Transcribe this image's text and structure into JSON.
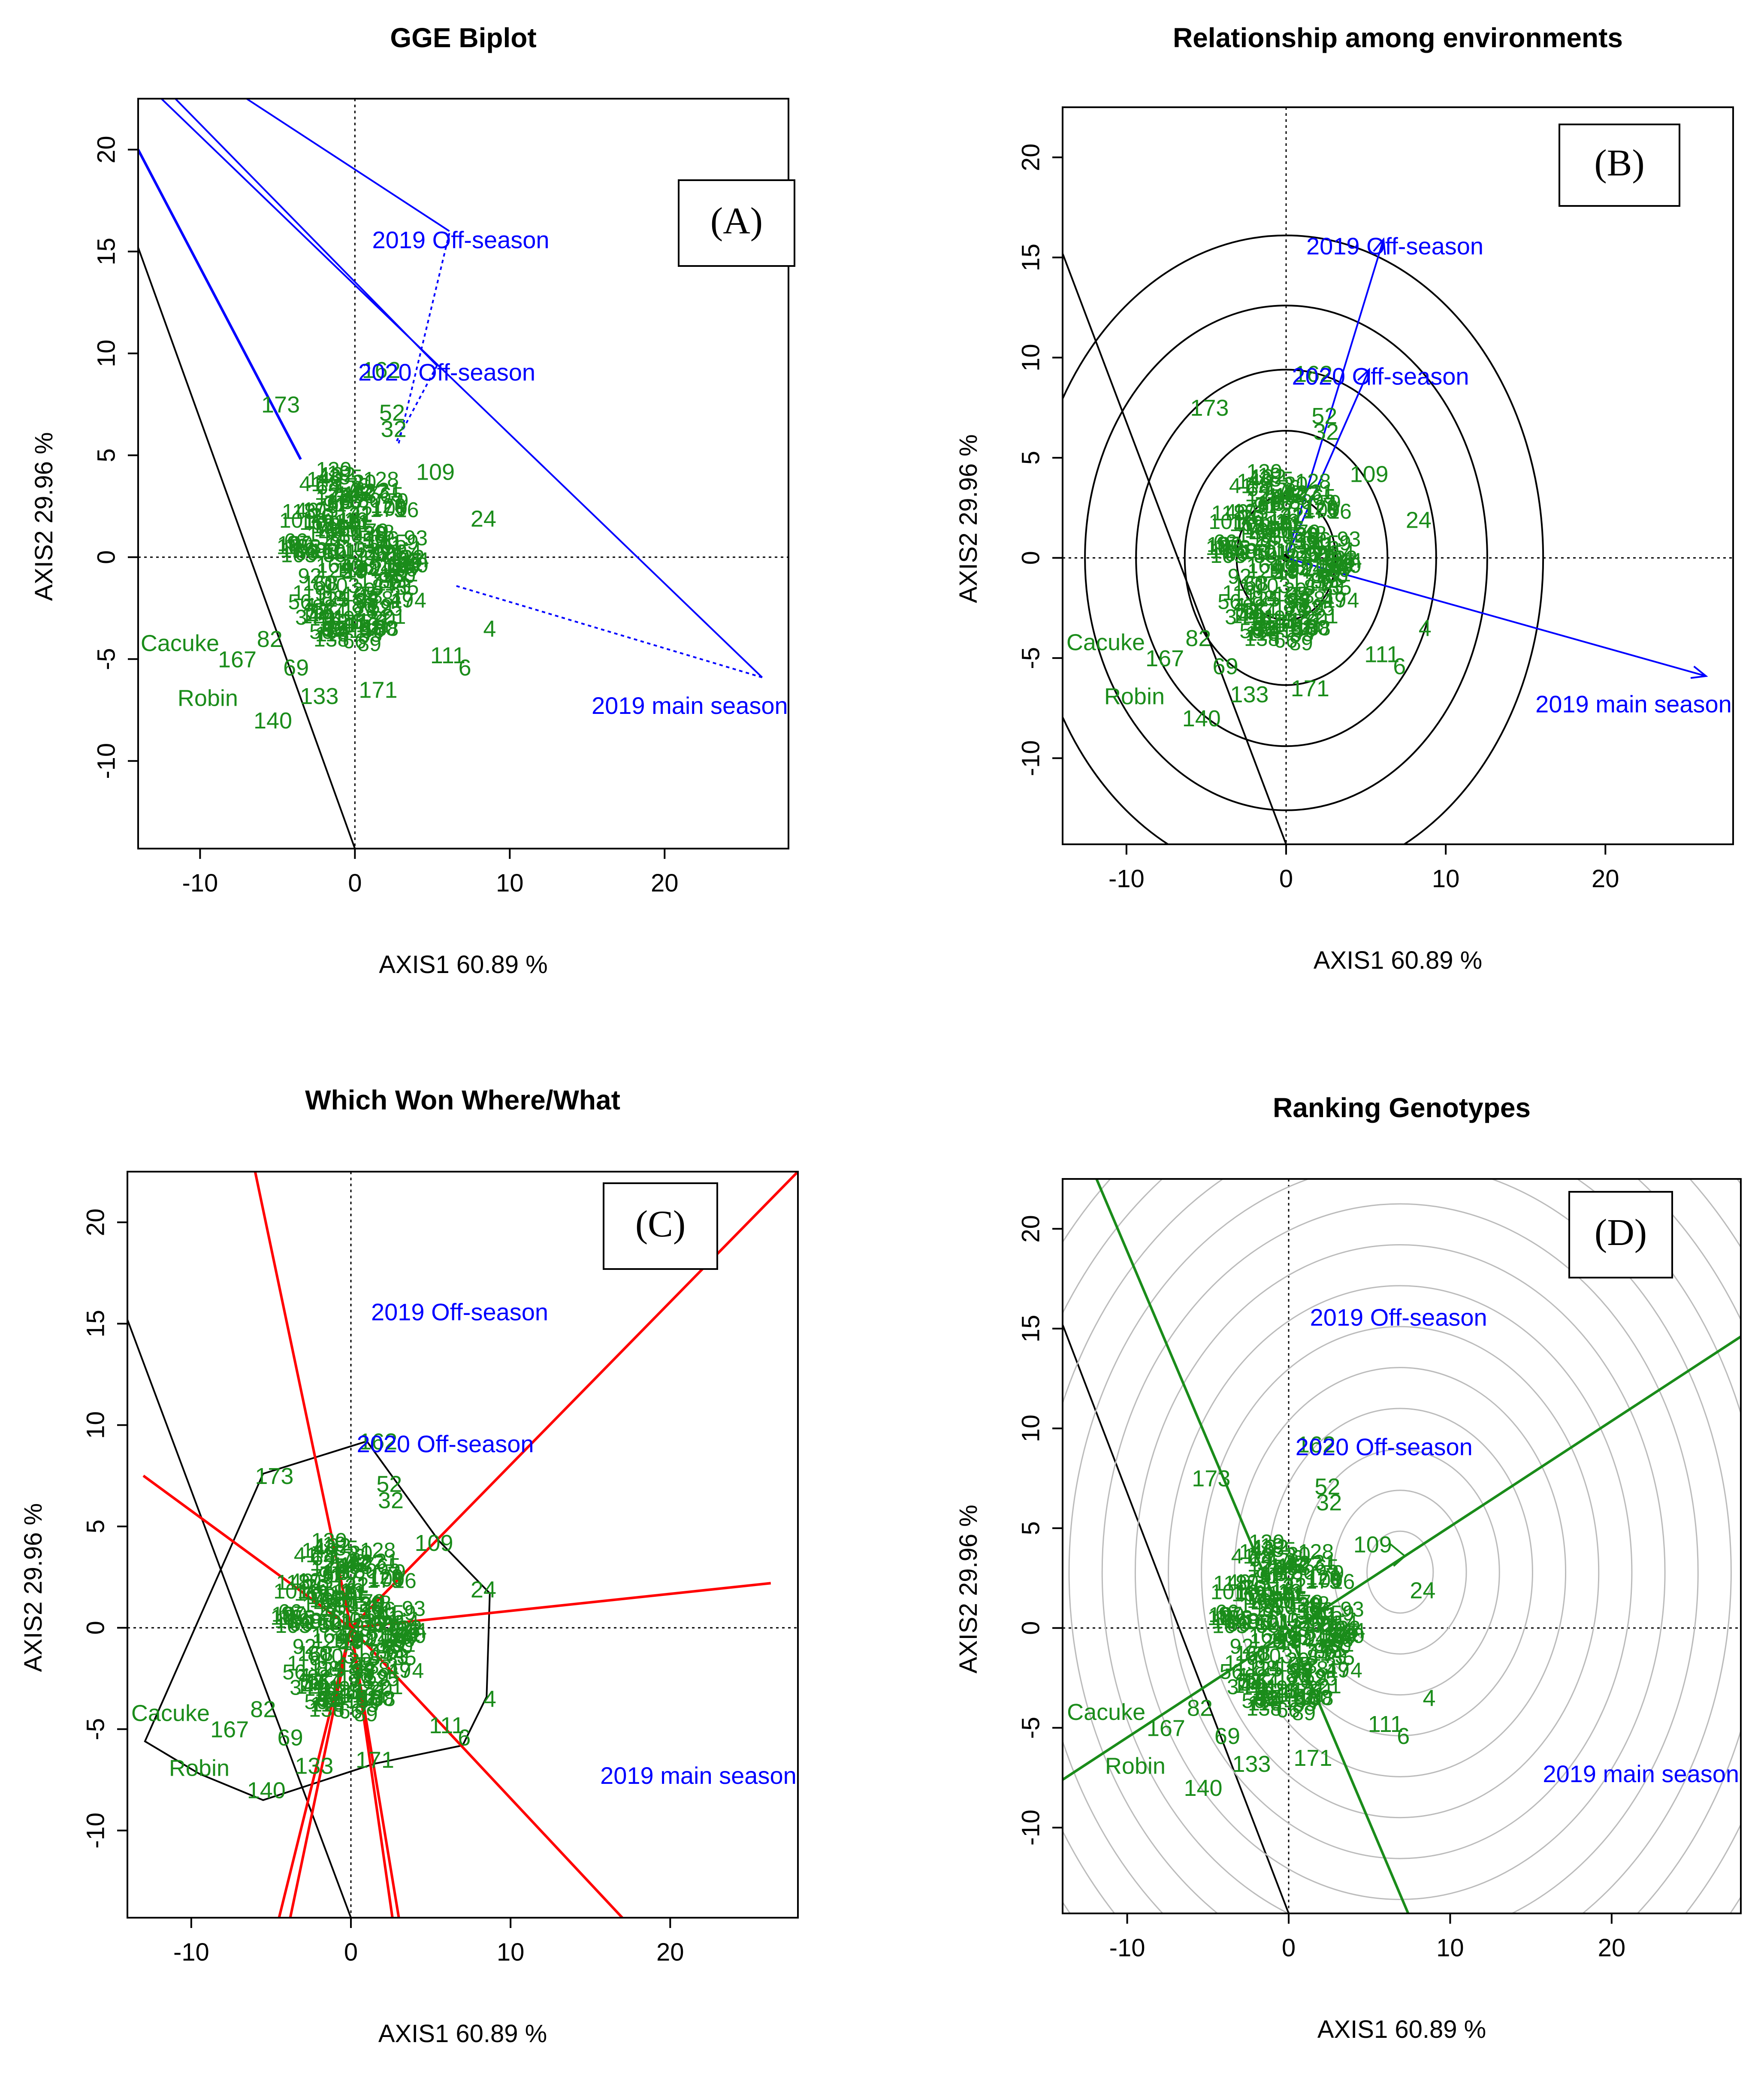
{
  "figure": {
    "colors": {
      "genotype": "#1a8c1a",
      "environment": "#0000ff",
      "sector": "#ff0000",
      "ranking": "#1a8c1a",
      "rings": "#bbbbbb",
      "frame": "#000000"
    },
    "panels": [
      {
        "id": "A",
        "title": "GGE Biplot",
        "panel_label": "(A)",
        "xlabel": "AXIS1 60.89 %",
        "ylabel": "AXIS2 29.96 %",
        "xlim": [
          -14,
          28
        ],
        "ylim": [
          -14.3,
          22.5
        ],
        "xticks": [
          -10,
          0,
          10,
          20
        ],
        "yticks": [
          -10,
          -5,
          0,
          5,
          10,
          15,
          20
        ]
      },
      {
        "id": "B",
        "title": "Relationship among environments",
        "panel_label": "(B)",
        "xlabel": "AXIS1 60.89 %",
        "ylabel": "AXIS2 29.96 %",
        "xlim": [
          -14,
          28
        ],
        "ylim": [
          -14.3,
          22.5
        ],
        "xticks": [
          -10,
          0,
          10,
          20
        ],
        "yticks": [
          -10,
          -5,
          0,
          5,
          10,
          15,
          20
        ]
      },
      {
        "id": "C",
        "title": "Which Won Where/What",
        "panel_label": "(C)",
        "xlabel": "AXIS1 60.89 %",
        "ylabel": "AXIS2 29.96 %",
        "xlim": [
          -14,
          28
        ],
        "ylim": [
          -14.3,
          22.5
        ],
        "xticks": [
          -10,
          0,
          10,
          20
        ],
        "yticks": [
          -10,
          -5,
          0,
          5,
          10,
          15,
          20
        ]
      },
      {
        "id": "D",
        "title": "Ranking Genotypes",
        "panel_label": "(D)",
        "xlabel": "AXIS1 60.89 %",
        "ylabel": "AXIS2 29.96 %",
        "xlim": [
          -14,
          28
        ],
        "ylim": [
          -14.3,
          22.5
        ],
        "xticks": [
          -10,
          0,
          10,
          20
        ],
        "yticks": [
          -10,
          -5,
          0,
          5,
          10,
          15,
          20
        ]
      }
    ]
  },
  "chart_data": {
    "type": "scatter",
    "environments": [
      {
        "name": "2019 Off-season",
        "x": 6.1,
        "y": 15.9
      },
      {
        "name": "2020 Off-season",
        "x": 5.2,
        "y": 9.4
      },
      {
        "name": "2019 main season",
        "x": 26.3,
        "y": -5.9
      }
    ],
    "named_genotypes": [
      {
        "label": "162",
        "x": 1.7,
        "y": 9.1
      },
      {
        "label": "173",
        "x": -4.8,
        "y": 7.4
      },
      {
        "label": "52",
        "x": 2.4,
        "y": 7.0
      },
      {
        "label": "32",
        "x": 2.5,
        "y": 6.2
      },
      {
        "label": "109",
        "x": 5.2,
        "y": 4.1
      },
      {
        "label": "24",
        "x": 8.3,
        "y": 1.8
      },
      {
        "label": "4",
        "x": 8.7,
        "y": -3.6
      },
      {
        "label": "111",
        "x": 6.0,
        "y": -4.9
      },
      {
        "label": "6",
        "x": 7.1,
        "y": -5.5
      },
      {
        "label": "82",
        "x": -5.5,
        "y": -4.1
      },
      {
        "label": "167",
        "x": -7.6,
        "y": -5.1
      },
      {
        "label": "69",
        "x": -3.8,
        "y": -5.5
      },
      {
        "label": "Cacuke",
        "x": -11.3,
        "y": -4.3
      },
      {
        "label": "Robin",
        "x": -9.5,
        "y": -7.0
      },
      {
        "label": "140",
        "x": -5.3,
        "y": -8.1
      },
      {
        "label": "133",
        "x": -2.3,
        "y": -6.9
      },
      {
        "label": "171",
        "x": 1.5,
        "y": -6.6
      }
    ],
    "polygon_vertices": [
      {
        "label": "162",
        "x": 1.0,
        "y": 9.2
      },
      {
        "label": "109",
        "x": 5.5,
        "y": 4.3
      },
      {
        "label": "24",
        "x": 8.7,
        "y": 1.7
      },
      {
        "label": "4",
        "x": 8.5,
        "y": -3.4
      },
      {
        "label": "6",
        "x": 7.0,
        "y": -5.8
      },
      {
        "label": "171",
        "x": 1.5,
        "y": -6.7
      },
      {
        "label": "140",
        "x": -5.5,
        "y": -8.5
      },
      {
        "label": "Robin",
        "x": -9.5,
        "y": -7.2
      },
      {
        "label": "Cacuke",
        "x": -12.9,
        "y": -5.6
      },
      {
        "label": "173",
        "x": -5.5,
        "y": 7.6
      }
    ],
    "mean_env_axis": {
      "x": 6.9,
      "y": 2.8
    }
  }
}
